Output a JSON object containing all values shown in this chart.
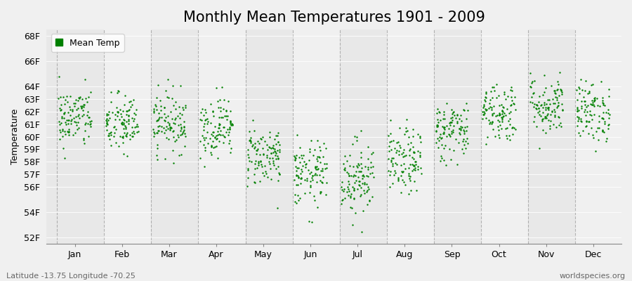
{
  "title": "Monthly Mean Temperatures 1901 - 2009",
  "ylabel": "Temperature",
  "xlabel_months": [
    "Jan",
    "Feb",
    "Mar",
    "Apr",
    "May",
    "Jun",
    "Jul",
    "Aug",
    "Sep",
    "Oct",
    "Nov",
    "Dec"
  ],
  "ytick_labels": [
    "52F",
    "54F",
    "56F",
    "57F",
    "58F",
    "59F",
    "60F",
    "61F",
    "62F",
    "63F",
    "64F",
    "66F",
    "68F"
  ],
  "ytick_values": [
    52,
    54,
    56,
    57,
    58,
    59,
    60,
    61,
    62,
    63,
    64,
    66,
    68
  ],
  "ylim": [
    51.5,
    68.5
  ],
  "dot_color": "#008000",
  "dot_size": 3,
  "background_color": "#f0f0f0",
  "plot_bg_color": "#f0f0f0",
  "grid_color": "#999999",
  "title_fontsize": 15,
  "label_fontsize": 9,
  "tick_fontsize": 9,
  "legend_label": "Mean Temp",
  "subtitle_left": "Latitude -13.75 Longitude -70.25",
  "subtitle_right": "worldspecies.org",
  "years": 109,
  "start_year": 1901,
  "monthly_means_F": [
    61.5,
    61.0,
    61.2,
    60.8,
    58.5,
    57.0,
    56.8,
    58.0,
    60.5,
    62.0,
    62.5,
    62.0
  ],
  "monthly_stds_F": [
    1.2,
    1.2,
    1.2,
    1.2,
    1.2,
    1.3,
    1.5,
    1.3,
    1.2,
    1.2,
    1.2,
    1.2
  ],
  "seed": 42
}
